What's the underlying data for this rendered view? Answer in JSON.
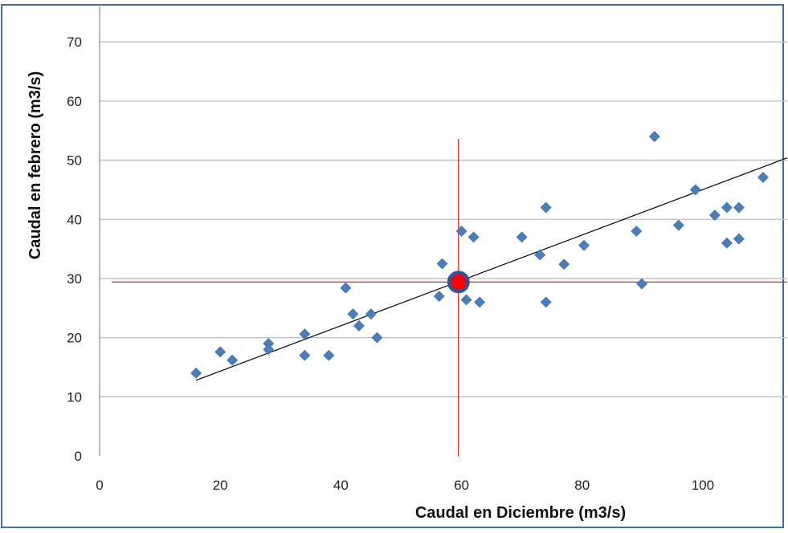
{
  "chart_data": {
    "type": "scatter",
    "title": "",
    "xlabel": "Caudal en Diciembre (m3/s)",
    "ylabel": "Caudal en febrero (m3/s)",
    "xlim": [
      0,
      114
    ],
    "ylim": [
      0,
      76
    ],
    "x_ticks": [
      0,
      20,
      40,
      60,
      80,
      100
    ],
    "y_ticks": [
      0,
      10,
      20,
      30,
      40,
      50,
      60,
      70
    ],
    "grid": "horizontal",
    "legend": "none",
    "colors": {
      "points": "#4a7ebb",
      "trendline": "#000000",
      "mean_lines": "#e02020",
      "mean_point_fill": "#ff0000",
      "mean_point_ring": "#2f5597",
      "gridlines": "#bfbfbf",
      "frame": "#3f6f9f"
    },
    "points": [
      {
        "x": 16,
        "y": 14
      },
      {
        "x": 20,
        "y": 17.6
      },
      {
        "x": 22,
        "y": 16.2
      },
      {
        "x": 28,
        "y": 19
      },
      {
        "x": 28,
        "y": 18
      },
      {
        "x": 34,
        "y": 20.6
      },
      {
        "x": 34,
        "y": 17
      },
      {
        "x": 38,
        "y": 17
      },
      {
        "x": 40.8,
        "y": 28.4
      },
      {
        "x": 42,
        "y": 24
      },
      {
        "x": 43,
        "y": 22
      },
      {
        "x": 45,
        "y": 24
      },
      {
        "x": 46,
        "y": 20
      },
      {
        "x": 56.3,
        "y": 27
      },
      {
        "x": 56.8,
        "y": 32.5
      },
      {
        "x": 60,
        "y": 38
      },
      {
        "x": 60.8,
        "y": 26.4
      },
      {
        "x": 62,
        "y": 37
      },
      {
        "x": 63,
        "y": 26
      },
      {
        "x": 70,
        "y": 37
      },
      {
        "x": 73,
        "y": 34
      },
      {
        "x": 74,
        "y": 42
      },
      {
        "x": 74,
        "y": 26
      },
      {
        "x": 77,
        "y": 32.4
      },
      {
        "x": 80.3,
        "y": 35.6
      },
      {
        "x": 89,
        "y": 38
      },
      {
        "x": 89.9,
        "y": 29.1
      },
      {
        "x": 92,
        "y": 54
      },
      {
        "x": 96,
        "y": 39
      },
      {
        "x": 98.8,
        "y": 45
      },
      {
        "x": 102,
        "y": 40.7
      },
      {
        "x": 104,
        "y": 42
      },
      {
        "x": 104,
        "y": 36
      },
      {
        "x": 106,
        "y": 42
      },
      {
        "x": 106,
        "y": 36.7
      },
      {
        "x": 110,
        "y": 47.1
      }
    ],
    "trendline": {
      "x": [
        16,
        114
      ],
      "y": [
        12.8,
        50.4
      ]
    },
    "mean_point": {
      "x": 59.5,
      "y": 29.4
    },
    "mean_lines": {
      "vertical": {
        "x": 59.5,
        "y": [
          -0.1,
          53.6
        ]
      },
      "horizontal": {
        "y": 29.4,
        "x": [
          2,
          114
        ]
      }
    }
  }
}
